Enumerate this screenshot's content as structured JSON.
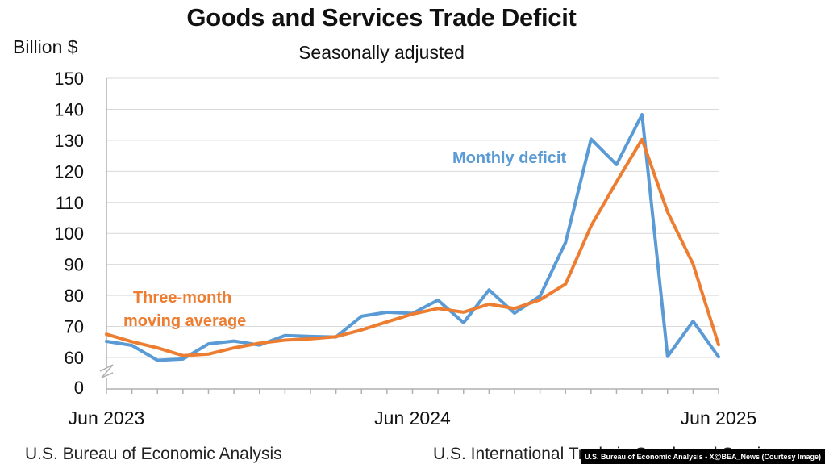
{
  "chart_data": {
    "type": "line",
    "title": "Goods and Services Trade Deficit",
    "subtitle": "Seasonally adjusted",
    "ylabel": "Billion $",
    "ylim": [
      0,
      150
    ],
    "yticks": [
      0,
      60,
      70,
      80,
      90,
      100,
      110,
      120,
      130,
      140,
      150
    ],
    "axis_break": true,
    "grid": true,
    "x": [
      "2023-06",
      "2023-07",
      "2023-08",
      "2023-09",
      "2023-10",
      "2023-11",
      "2023-12",
      "2024-01",
      "2024-02",
      "2024-03",
      "2024-04",
      "2024-05",
      "2024-06",
      "2024-07",
      "2024-08",
      "2024-09",
      "2024-10",
      "2024-11",
      "2024-12",
      "2025-01",
      "2025-02",
      "2025-03",
      "2025-04",
      "2025-05",
      "2025-06"
    ],
    "xtick_labels": [
      "Jun 2023",
      "Jun 2024",
      "Jun 2025"
    ],
    "xtick_index": [
      0,
      12,
      24
    ],
    "series": [
      {
        "name": "Monthly deficit",
        "color": "#5b9bd5",
        "values": [
          65.2,
          63.9,
          59.1,
          59.5,
          64.4,
          65.3,
          64.0,
          67.1,
          66.8,
          66.6,
          73.3,
          74.6,
          74.2,
          78.5,
          71.2,
          81.8,
          74.3,
          79.8,
          97.1,
          130.4,
          122.2,
          138.3,
          60.3,
          71.7,
          60.2
        ]
      },
      {
        "name": "Three-month moving average",
        "color": "#ed7d31",
        "values": [
          67.5,
          65.1,
          63.1,
          60.6,
          61.1,
          63.1,
          64.6,
          65.6,
          66.0,
          66.7,
          68.9,
          71.5,
          74.0,
          75.8,
          74.6,
          77.2,
          75.8,
          78.6,
          83.7,
          102.4,
          116.6,
          130.3,
          106.9,
          90.1,
          64.1
        ]
      }
    ],
    "annotations": {
      "monthly": "Monthly deficit",
      "average_line1": "Three-month",
      "average_line2": "moving average"
    }
  },
  "footer": {
    "left": "U.S. Bureau of Economic Analysis",
    "right": "U.S. International Trade in Goods and Services",
    "credit": "U.S. Bureau of Economic Analysis - X@BEA_News (Courtesy Image)"
  }
}
